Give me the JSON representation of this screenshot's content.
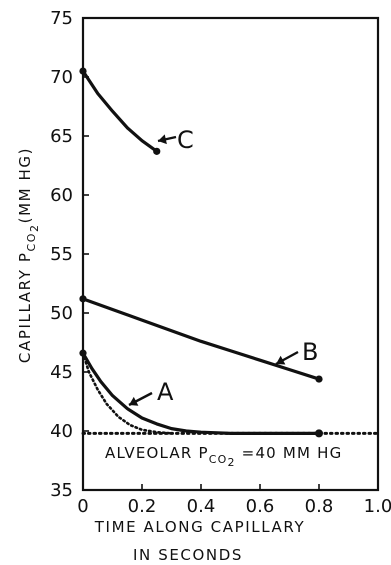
{
  "chart_data": {
    "type": "line",
    "xlabel_line1": "TIME ALONG CAPILLARY",
    "xlabel_line2": "IN SECONDS",
    "ylabel_main": "CAPILLARY P",
    "ylabel_sub": "CO",
    "ylabel_sub2": "2",
    "ylabel_unit": "(MM HG)",
    "xlim": [
      0,
      1.0
    ],
    "ylim": [
      35,
      75
    ],
    "x_ticks": [
      "0",
      "0.2",
      "0.4",
      "0.6",
      "0.8",
      "1.0"
    ],
    "x_tick_values": [
      0,
      0.2,
      0.4,
      0.6,
      0.8,
      1.0
    ],
    "y_ticks": [
      "35",
      "40",
      "45",
      "50",
      "55",
      "60",
      "65",
      "70",
      "75"
    ],
    "y_tick_values": [
      35,
      40,
      45,
      50,
      55,
      60,
      65,
      70,
      75
    ],
    "series": [
      {
        "name": "A",
        "style": "solid",
        "x": [
          0,
          0.03,
          0.06,
          0.1,
          0.15,
          0.2,
          0.25,
          0.3,
          0.35,
          0.4,
          0.5,
          0.6,
          0.7,
          0.8
        ],
        "y": [
          46.6,
          45.3,
          44.2,
          43.0,
          41.9,
          41.1,
          40.6,
          40.2,
          40.0,
          39.9,
          39.8,
          39.8,
          39.8,
          39.8
        ]
      },
      {
        "name": "",
        "style": "dotted",
        "x": [
          0,
          0.02,
          0.05,
          0.08,
          0.12,
          0.16,
          0.2,
          0.25,
          0.3
        ],
        "y": [
          46.6,
          45.0,
          43.5,
          42.3,
          41.2,
          40.5,
          40.1,
          39.9,
          39.8
        ]
      },
      {
        "name": "B",
        "style": "solid",
        "x": [
          0,
          0.1,
          0.2,
          0.3,
          0.4,
          0.5,
          0.6,
          0.7,
          0.8
        ],
        "y": [
          51.2,
          50.3,
          49.4,
          48.5,
          47.6,
          46.8,
          46.0,
          45.2,
          44.4
        ]
      },
      {
        "name": "C",
        "style": "solid",
        "x": [
          0,
          0.05,
          0.1,
          0.15,
          0.2,
          0.25
        ],
        "y": [
          70.5,
          68.6,
          67.1,
          65.7,
          64.6,
          63.7
        ]
      },
      {
        "name": "",
        "style": "dotted-baseline",
        "x": [
          0,
          1.0
        ],
        "y": [
          39.8,
          39.8
        ]
      }
    ],
    "labels": [
      {
        "text": "A",
        "series": "A"
      },
      {
        "text": "B",
        "series": "B"
      },
      {
        "text": "C",
        "series": "C"
      }
    ],
    "annotation": {
      "line1": "ALVEOLAR P",
      "sub": "CO",
      "sub2": "2",
      "line2": "=40 MM HG"
    }
  }
}
